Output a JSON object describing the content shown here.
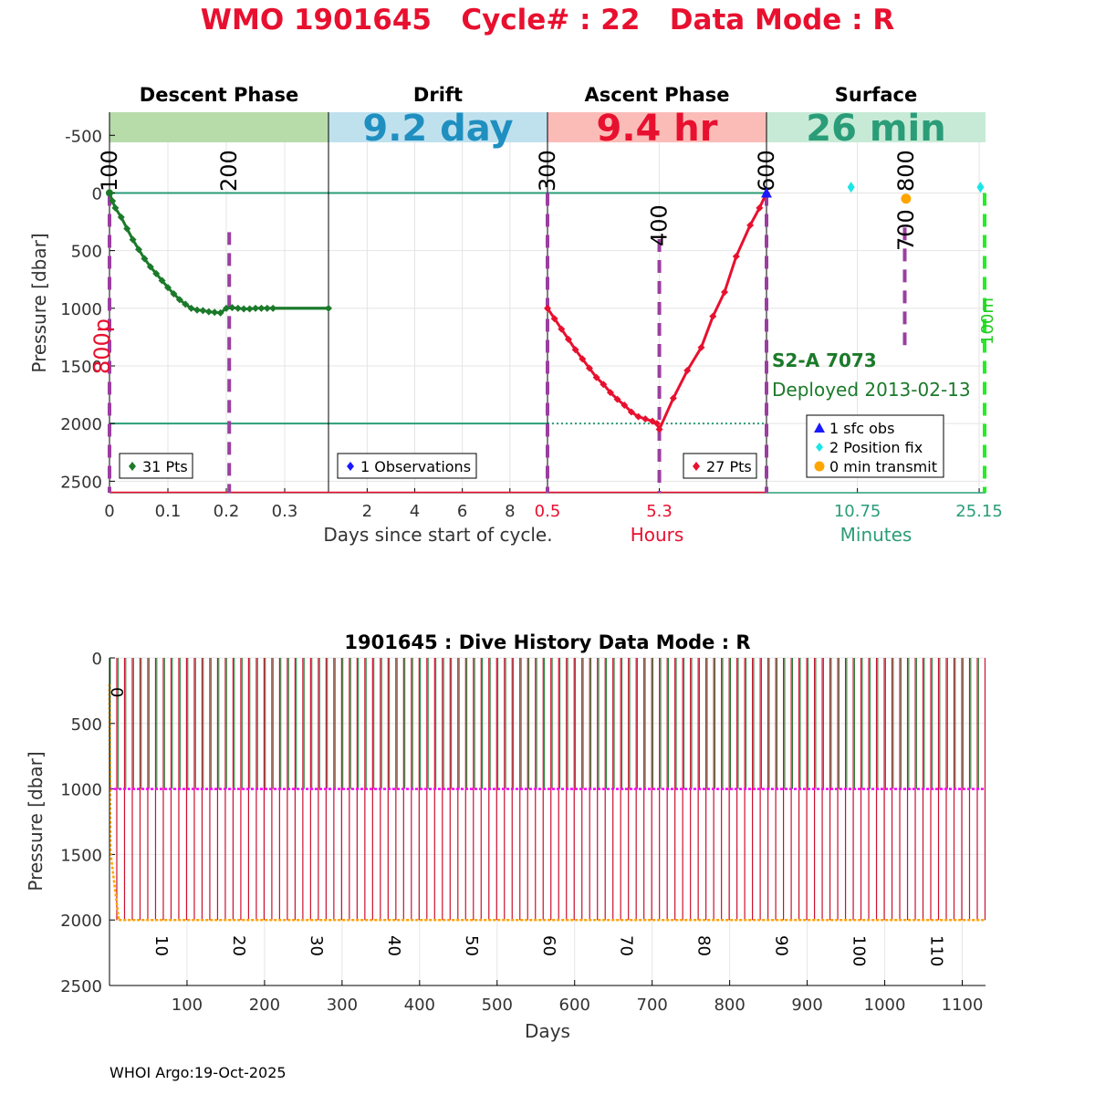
{
  "header": {
    "title": "WMO 1901645   Cycle# : 22   Data Mode : R"
  },
  "colors": {
    "descent": "#1b7a2a",
    "ascent": "#e8102f",
    "drift_text": "#1f8fc0",
    "surface_text": "#2a9d78",
    "purple": "#9b3ea0",
    "teal_line": "#2a9d78",
    "orange": "#ffa500",
    "cyan": "#19e6e6",
    "magenta": "#ff00ff",
    "history_green": "#1b7a2a",
    "history_red": "#cc1030"
  },
  "chart_data": [
    {
      "type": "line",
      "y_axis": {
        "label": "Pressure [dbar]",
        "ticks": [
          -500,
          0,
          500,
          1000,
          1500,
          2000,
          2500
        ],
        "ylim": [
          -700,
          2600
        ],
        "reversed": true
      },
      "xlabel": "Days since start of cycle.",
      "panels": [
        {
          "id": "descent",
          "title": "Descent Phase",
          "band_text": "",
          "x_ticks": [
            "0",
            "0.1",
            "0.2",
            "0.3"
          ],
          "x_tick_values": [
            0,
            0.1,
            0.2,
            0.3
          ],
          "xlim": [
            0,
            0.375
          ],
          "marker_labels": [
            {
              "text": "100",
              "x": 0
            },
            {
              "text": "200",
              "x": 0.205
            }
          ],
          "legend": "31 Pts",
          "series": [
            {
              "x": [
                0,
                0.005,
                0.01,
                0.02,
                0.03,
                0.04,
                0.05,
                0.06,
                0.07,
                0.08,
                0.09,
                0.1,
                0.11,
                0.12,
                0.13,
                0.14,
                0.15,
                0.16,
                0.17,
                0.18,
                0.19,
                0.2,
                0.21,
                0.22,
                0.23,
                0.24,
                0.25,
                0.26,
                0.27,
                0.28,
                0.375
              ],
              "y": [
                0,
                70,
                130,
                210,
                310,
                405,
                490,
                570,
                640,
                700,
                760,
                820,
                875,
                925,
                965,
                1000,
                1015,
                1020,
                1030,
                1035,
                1040,
                1000,
                995,
                1000,
                1005,
                1005,
                1000,
                1000,
                1000,
                1000,
                1000
              ]
            }
          ]
        },
        {
          "id": "drift",
          "title": "Drift",
          "band_text": "9.2 day",
          "x_ticks": [
            "2",
            "4",
            "6",
            "8"
          ],
          "x_tick_values": [
            2,
            4,
            6,
            8
          ],
          "xlim": [
            0.375,
            9.58
          ],
          "legend": "1 Observations"
        },
        {
          "id": "ascent",
          "title": "Ascent Phase",
          "band_text": "9.4 hr",
          "x_ticks": [
            "0.5",
            "5.3"
          ],
          "x_tick_values": [
            0.5,
            5.3
          ],
          "xlim": [
            0.5,
            9.9
          ],
          "xlabel": "Hours",
          "marker_labels": [
            {
              "text": "300",
              "x": 0.5
            },
            {
              "text": "400",
              "x": 5.3
            },
            {
              "text": "600",
              "x": 9.9
            }
          ],
          "legend": "27 Pts",
          "series": [
            {
              "x": [
                0.5,
                0.8,
                1.1,
                1.4,
                1.7,
                2.0,
                2.3,
                2.6,
                2.9,
                3.2,
                3.5,
                3.8,
                4.1,
                4.4,
                4.7,
                5.0,
                5.2,
                5.3,
                5.9,
                6.5,
                7.1,
                7.6,
                8.1,
                8.6,
                9.2,
                9.6,
                9.9
              ],
              "y": [
                1000,
                1090,
                1180,
                1270,
                1360,
                1440,
                1520,
                1600,
                1660,
                1730,
                1790,
                1840,
                1900,
                1940,
                1960,
                1980,
                2000,
                2050,
                1780,
                1540,
                1340,
                1070,
                860,
                550,
                280,
                130,
                0
              ]
            }
          ]
        },
        {
          "id": "surface",
          "title": "Surface",
          "band_text": "26 min",
          "x_ticks": [
            "10.75",
            "25.15"
          ],
          "x_tick_values": [
            10.75,
            25.15
          ],
          "xlim": [
            0,
            25.9
          ],
          "xlabel": "Minutes",
          "marker_labels": [
            {
              "text": "800",
              "x": 16.5
            },
            {
              "text": "700",
              "x": 16.3
            }
          ],
          "annotations": {
            "float_id": "S2-A 7073",
            "deployed": "Deployed 2013-02-13",
            "left_pressure_label": "800p",
            "right_label": "100m"
          },
          "legend": [
            "1 sfc obs",
            "2 Position fix",
            "0 min transmit"
          ],
          "position_fixes": [
            {
              "x": 10,
              "y": -50
            },
            {
              "x": 25.3,
              "y": -50
            }
          ],
          "transmit": [
            {
              "x": 16.5,
              "y": 50
            }
          ],
          "sfc_obs": [
            {
              "x": 0,
              "y": 0
            }
          ]
        }
      ]
    },
    {
      "type": "line",
      "title": "1901645 : Dive History      Data Mode : R",
      "xlabel": "Days",
      "ylabel": "Pressure [dbar]",
      "xlim": [
        0,
        1130
      ],
      "ylim": [
        0,
        2500
      ],
      "x_ticks": [
        100,
        200,
        300,
        400,
        500,
        600,
        700,
        800,
        900,
        1000,
        1100
      ],
      "y_ticks": [
        0,
        500,
        1000,
        1500,
        2000,
        2500
      ],
      "cycle_labels": [
        {
          "text": "0",
          "day": 0
        },
        {
          "text": "10",
          "day": 60
        },
        {
          "text": "20",
          "day": 160
        },
        {
          "text": "30",
          "day": 260
        },
        {
          "text": "40",
          "day": 360
        },
        {
          "text": "50",
          "day": 460
        },
        {
          "text": "60",
          "day": 560
        },
        {
          "text": "70",
          "day": 660
        },
        {
          "text": "80",
          "day": 760
        },
        {
          "text": "90",
          "day": 860
        },
        {
          "text": "100",
          "day": 960
        },
        {
          "text": "110",
          "day": 1060
        }
      ],
      "park_pressure": 1000,
      "profile_pressure": 2000,
      "cycle_interval_days": 10,
      "num_cycles": 113
    }
  ],
  "footer": {
    "text": "WHOI Argo:19-Oct-2025"
  }
}
